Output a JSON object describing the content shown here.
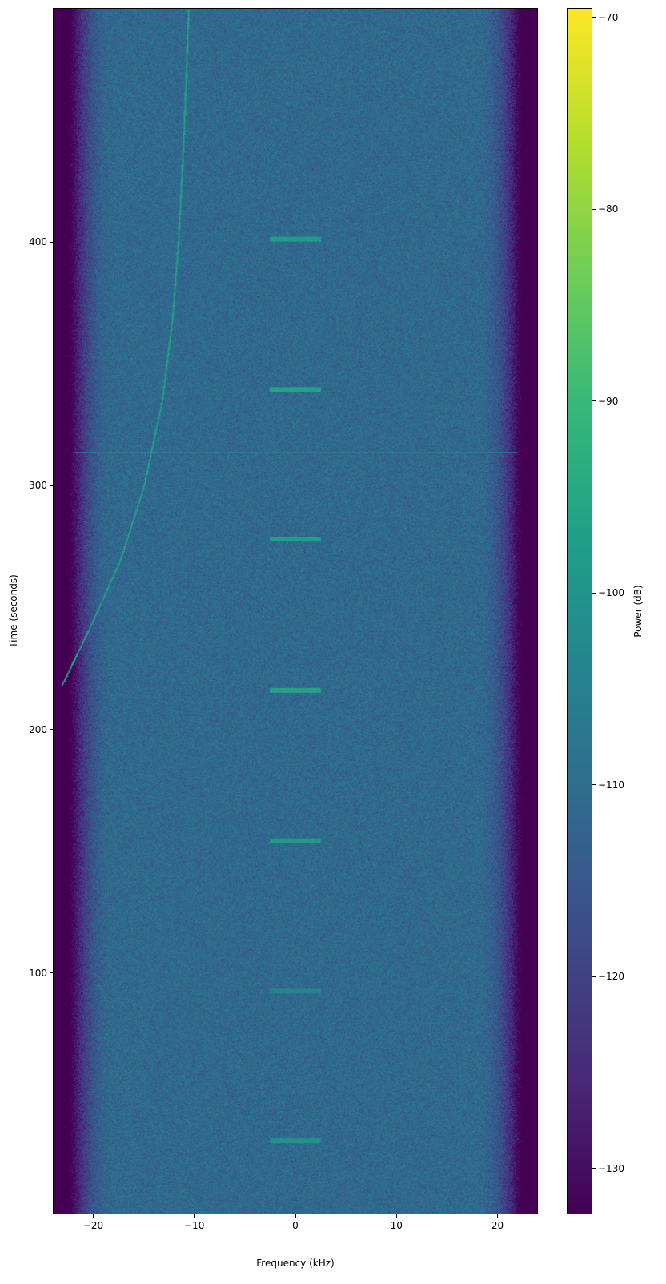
{
  "chart_data": {
    "type": "heatmap",
    "title": "",
    "xlabel": "Frequency (kHz)",
    "ylabel": "Time (seconds)",
    "xlim": [
      -24,
      24
    ],
    "ylim": [
      1,
      496
    ],
    "xticks": [
      -20,
      -10,
      0,
      10,
      20
    ],
    "xtick_labels": [
      "−20",
      "−10",
      "0",
      "10",
      "20"
    ],
    "yticks": [
      100,
      200,
      300,
      400
    ],
    "ytick_labels": [
      "100",
      "200",
      "300",
      "400"
    ],
    "colormap": "viridis",
    "colorbar": {
      "label": "Power (dB)",
      "range": [
        -132.4,
        -69.5
      ],
      "ticks": [
        -70,
        -80,
        -90,
        -100,
        -110,
        -120,
        -130
      ],
      "tick_labels": [
        "−70",
        "−80",
        "−90",
        "−100",
        "−110",
        "−120",
        "−130"
      ]
    },
    "noise_floor_db": -111,
    "passband_edge_khz": 22,
    "bursts": {
      "center_khz": 0,
      "half_width_khz": 2.5,
      "times_s": [
        31,
        92.4,
        154.3,
        216,
        278,
        339.5,
        401.3
      ],
      "power_db": [
        -100,
        -104,
        -98,
        -96,
        -97,
        -96,
        -98
      ]
    },
    "chirp": {
      "power_db": -98,
      "points": [
        [
          -24,
          212
        ],
        [
          -22.9,
          220
        ],
        [
          -20,
          245
        ],
        [
          -17.3,
          270
        ],
        [
          -15,
          300
        ],
        [
          -13.2,
          335
        ],
        [
          -12.2,
          368
        ],
        [
          -11.6,
          400
        ],
        [
          -11.1,
          440
        ],
        [
          -10.8,
          470
        ],
        [
          -10.6,
          496
        ]
      ]
    },
    "horizontal_line": {
      "time_s": 313.8,
      "power_db": -104
    }
  }
}
